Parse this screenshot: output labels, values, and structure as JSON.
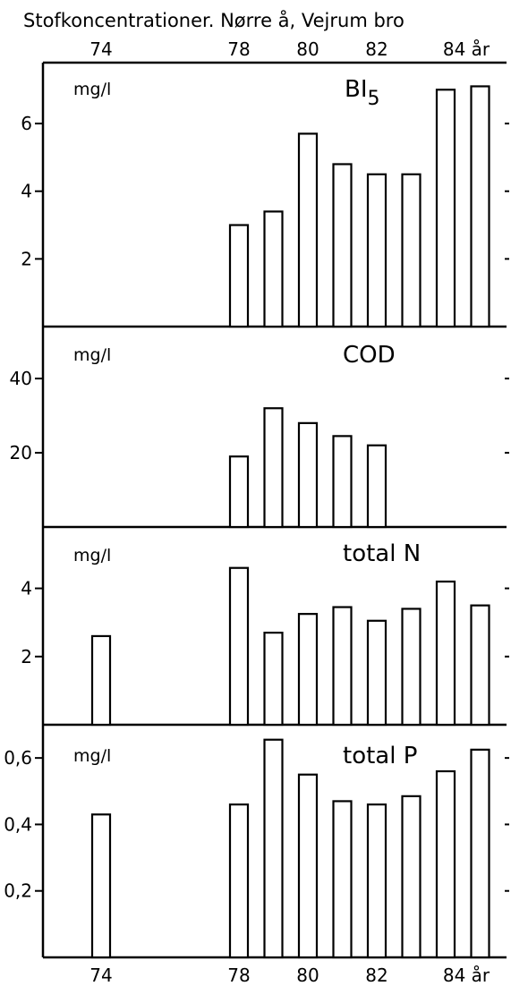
{
  "title": "Stofkoncentrationer.  Nørre å, Vejrum bro",
  "x_ticks": [
    "74",
    "78",
    "80",
    "82",
    "84 år"
  ],
  "chart_data": [
    {
      "type": "bar",
      "name": "BI",
      "name_subscript": "5",
      "ylabel": "mg/l",
      "yticks": [
        "2",
        "4",
        "6"
      ],
      "ylim": [
        0,
        7.8
      ],
      "x": [
        78,
        79,
        80,
        81,
        82,
        83,
        84,
        85
      ],
      "values": [
        3.0,
        3.4,
        5.7,
        4.8,
        4.5,
        4.5,
        7.0,
        7.1
      ]
    },
    {
      "type": "bar",
      "name": "COD",
      "ylabel": "mg/l",
      "yticks": [
        "20",
        "40"
      ],
      "ylim": [
        0,
        54
      ],
      "x": [
        78,
        79,
        80,
        81,
        82
      ],
      "values": [
        19,
        32,
        28,
        24.5,
        22
      ]
    },
    {
      "type": "bar",
      "name": "total N",
      "ylabel": "mg/l",
      "yticks": [
        "2",
        "4"
      ],
      "ylim": [
        0,
        5.8
      ],
      "x": [
        74,
        78,
        79,
        80,
        81,
        82,
        83,
        84,
        85
      ],
      "values": [
        2.6,
        4.6,
        2.7,
        3.25,
        3.45,
        3.05,
        3.4,
        4.2,
        3.5
      ]
    },
    {
      "type": "bar",
      "name": "total P",
      "ylabel": "mg/l",
      "yticks": [
        "0,2",
        "0,4",
        "0,6"
      ],
      "ylim": [
        0,
        0.7
      ],
      "x": [
        74,
        78,
        79,
        80,
        81,
        82,
        83,
        84,
        85
      ],
      "values": [
        0.43,
        0.46,
        0.655,
        0.55,
        0.47,
        0.46,
        0.485,
        0.56,
        0.625
      ]
    }
  ]
}
